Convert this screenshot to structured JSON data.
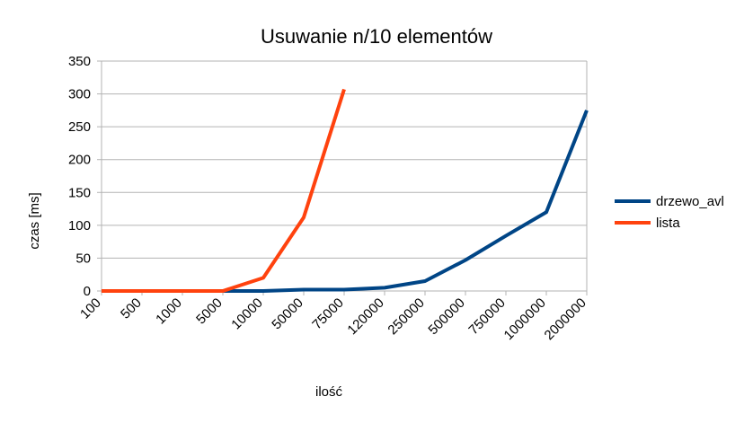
{
  "chart_data": {
    "type": "line",
    "title": "Usuwanie n/10 elementów",
    "xlabel": "ilość",
    "ylabel": "czas [ms]",
    "categories": [
      "100",
      "500",
      "1000",
      "5000",
      "10000",
      "50000",
      "75000",
      "120000",
      "250000",
      "500000",
      "750000",
      "1000000",
      "2000000"
    ],
    "ylim": [
      0,
      350
    ],
    "yticks": [
      0,
      50,
      100,
      150,
      200,
      250,
      300,
      350
    ],
    "grid": true,
    "legend_position": "right",
    "series": [
      {
        "name": "drzewo_avl",
        "color": "#004586",
        "values": [
          0,
          0,
          0,
          0,
          0,
          2,
          2,
          5,
          15,
          47,
          84,
          120,
          275
        ]
      },
      {
        "name": "lista",
        "color": "#ff420e",
        "values": [
          0,
          0,
          0,
          0,
          20,
          112,
          307,
          null,
          null,
          null,
          null,
          null,
          null
        ]
      }
    ]
  }
}
